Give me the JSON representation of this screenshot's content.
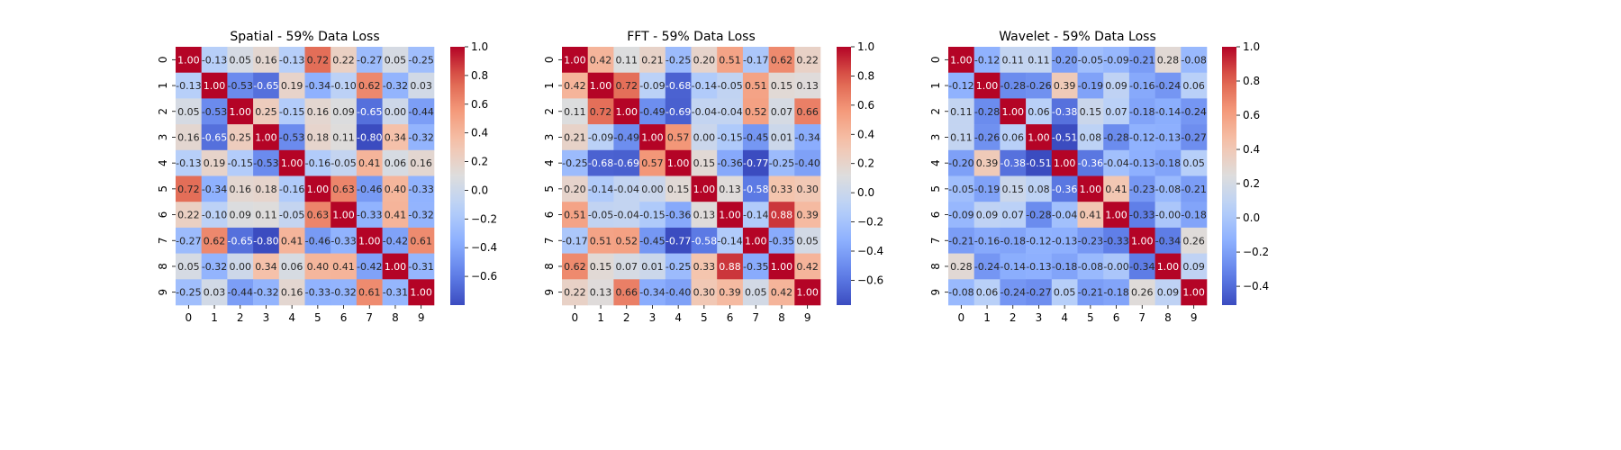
{
  "chart_data": [
    {
      "type": "heatmap",
      "title": "Spatial - 59% Data Loss",
      "x_tick_labels": [
        "0",
        "1",
        "2",
        "3",
        "4",
        "5",
        "6",
        "7",
        "8",
        "9"
      ],
      "y_tick_labels": [
        "0",
        "1",
        "2",
        "3",
        "4",
        "5",
        "6",
        "7",
        "8",
        "9"
      ],
      "colormap": "coolwarm",
      "colorbar_ticks": [
        "1.0",
        "0.8",
        "0.6",
        "0.4",
        "0.2",
        "0.0",
        "−0.2",
        "−0.4",
        "−0.6"
      ],
      "vmin": -0.8,
      "vmax": 1.0,
      "values": [
        [
          "1.00",
          "-0.13",
          "0.05",
          "0.16",
          "-0.13",
          "0.72",
          "0.22",
          "-0.27",
          "0.05",
          "-0.25"
        ],
        [
          "-0.13",
          "1.00",
          "-0.53",
          "-0.65",
          "0.19",
          "-0.34",
          "-0.10",
          "0.62",
          "-0.32",
          "0.03"
        ],
        [
          "0.05",
          "-0.53",
          "1.00",
          "0.25",
          "-0.15",
          "0.16",
          "0.09",
          "-0.65",
          "0.00",
          "-0.44"
        ],
        [
          "0.16",
          "-0.65",
          "0.25",
          "1.00",
          "-0.53",
          "0.18",
          "0.11",
          "-0.80",
          "0.34",
          "-0.32"
        ],
        [
          "-0.13",
          "0.19",
          "-0.15",
          "-0.53",
          "1.00",
          "-0.16",
          "-0.05",
          "0.41",
          "0.06",
          "0.16"
        ],
        [
          "0.72",
          "-0.34",
          "0.16",
          "0.18",
          "-0.16",
          "1.00",
          "0.63",
          "-0.46",
          "0.40",
          "-0.33"
        ],
        [
          "0.22",
          "-0.10",
          "0.09",
          "0.11",
          "-0.05",
          "0.63",
          "1.00",
          "-0.33",
          "0.41",
          "-0.32"
        ],
        [
          "-0.27",
          "0.62",
          "-0.65",
          "-0.80",
          "0.41",
          "-0.46",
          "-0.33",
          "1.00",
          "-0.42",
          "0.61"
        ],
        [
          "0.05",
          "-0.32",
          "0.00",
          "0.34",
          "0.06",
          "0.40",
          "0.41",
          "-0.42",
          "1.00",
          "-0.31"
        ],
        [
          "-0.25",
          "0.03",
          "-0.44",
          "-0.32",
          "0.16",
          "-0.33",
          "-0.32",
          "0.61",
          "-0.31",
          "1.00"
        ]
      ]
    },
    {
      "type": "heatmap",
      "title": "FFT - 59% Data Loss",
      "x_tick_labels": [
        "0",
        "1",
        "2",
        "3",
        "4",
        "5",
        "6",
        "7",
        "8",
        "9"
      ],
      "y_tick_labels": [
        "0",
        "1",
        "2",
        "3",
        "4",
        "5",
        "6",
        "7",
        "8",
        "9"
      ],
      "colormap": "coolwarm",
      "colorbar_ticks": [
        "1.0",
        "0.8",
        "0.6",
        "0.4",
        "0.2",
        "0.0",
        "−0.2",
        "−0.4",
        "−0.6"
      ],
      "vmin": -0.77,
      "vmax": 1.0,
      "values": [
        [
          "1.00",
          "0.42",
          "0.11",
          "0.21",
          "-0.25",
          "0.20",
          "0.51",
          "-0.17",
          "0.62",
          "0.22"
        ],
        [
          "0.42",
          "1.00",
          "0.72",
          "-0.09",
          "-0.68",
          "-0.14",
          "-0.05",
          "0.51",
          "0.15",
          "0.13"
        ],
        [
          "0.11",
          "0.72",
          "1.00",
          "-0.49",
          "-0.69",
          "-0.04",
          "-0.04",
          "0.52",
          "0.07",
          "0.66"
        ],
        [
          "0.21",
          "-0.09",
          "-0.49",
          "1.00",
          "0.57",
          "0.00",
          "-0.15",
          "-0.45",
          "0.01",
          "-0.34"
        ],
        [
          "-0.25",
          "-0.68",
          "-0.69",
          "0.57",
          "1.00",
          "0.15",
          "-0.36",
          "-0.77",
          "-0.25",
          "-0.40"
        ],
        [
          "0.20",
          "-0.14",
          "-0.04",
          "0.00",
          "0.15",
          "1.00",
          "0.13",
          "-0.58",
          "0.33",
          "0.30"
        ],
        [
          "0.51",
          "-0.05",
          "-0.04",
          "-0.15",
          "-0.36",
          "0.13",
          "1.00",
          "-0.14",
          "0.88",
          "0.39"
        ],
        [
          "-0.17",
          "0.51",
          "0.52",
          "-0.45",
          "-0.77",
          "-0.58",
          "-0.14",
          "1.00",
          "-0.35",
          "0.05"
        ],
        [
          "0.62",
          "0.15",
          "0.07",
          "0.01",
          "-0.25",
          "0.33",
          "0.88",
          "-0.35",
          "1.00",
          "0.42"
        ],
        [
          "0.22",
          "0.13",
          "0.66",
          "-0.34",
          "-0.40",
          "0.30",
          "0.39",
          "0.05",
          "0.42",
          "1.00"
        ]
      ]
    },
    {
      "type": "heatmap",
      "title": "Wavelet - 59% Data Loss",
      "x_tick_labels": [
        "0",
        "1",
        "2",
        "3",
        "4",
        "5",
        "6",
        "7",
        "8",
        "9"
      ],
      "y_tick_labels": [
        "0",
        "1",
        "2",
        "3",
        "4",
        "5",
        "6",
        "7",
        "8",
        "9"
      ],
      "colormap": "coolwarm",
      "colorbar_ticks": [
        "1.0",
        "0.8",
        "0.6",
        "0.4",
        "0.2",
        "0.0",
        "−0.2",
        "−0.4"
      ],
      "vmin": -0.51,
      "vmax": 1.0,
      "values": [
        [
          "1.00",
          "-0.12",
          "0.11",
          "0.11",
          "-0.20",
          "-0.05",
          "-0.09",
          "-0.21",
          "0.28",
          "-0.08"
        ],
        [
          "-0.12",
          "1.00",
          "-0.28",
          "-0.26",
          "0.39",
          "-0.19",
          "0.09",
          "-0.16",
          "-0.24",
          "0.06"
        ],
        [
          "0.11",
          "-0.28",
          "1.00",
          "0.06",
          "-0.38",
          "0.15",
          "0.07",
          "-0.18",
          "-0.14",
          "-0.24"
        ],
        [
          "0.11",
          "-0.26",
          "0.06",
          "1.00",
          "-0.51",
          "0.08",
          "-0.28",
          "-0.12",
          "-0.13",
          "-0.27"
        ],
        [
          "-0.20",
          "0.39",
          "-0.38",
          "-0.51",
          "1.00",
          "-0.36",
          "-0.04",
          "-0.13",
          "-0.18",
          "0.05"
        ],
        [
          "-0.05",
          "-0.19",
          "0.15",
          "0.08",
          "-0.36",
          "1.00",
          "0.41",
          "-0.23",
          "-0.08",
          "-0.21"
        ],
        [
          "-0.09",
          "0.09",
          "0.07",
          "-0.28",
          "-0.04",
          "0.41",
          "1.00",
          "-0.33",
          "-0.00",
          "-0.18"
        ],
        [
          "-0.21",
          "-0.16",
          "-0.18",
          "-0.12",
          "-0.13",
          "-0.23",
          "-0.33",
          "1.00",
          "-0.34",
          "0.26"
        ],
        [
          "0.28",
          "-0.24",
          "-0.14",
          "-0.13",
          "-0.18",
          "-0.08",
          "-0.00",
          "-0.34",
          "1.00",
          "0.09"
        ],
        [
          "-0.08",
          "0.06",
          "-0.24",
          "-0.27",
          "0.05",
          "-0.21",
          "-0.18",
          "0.26",
          "0.09",
          "1.00"
        ]
      ]
    }
  ]
}
